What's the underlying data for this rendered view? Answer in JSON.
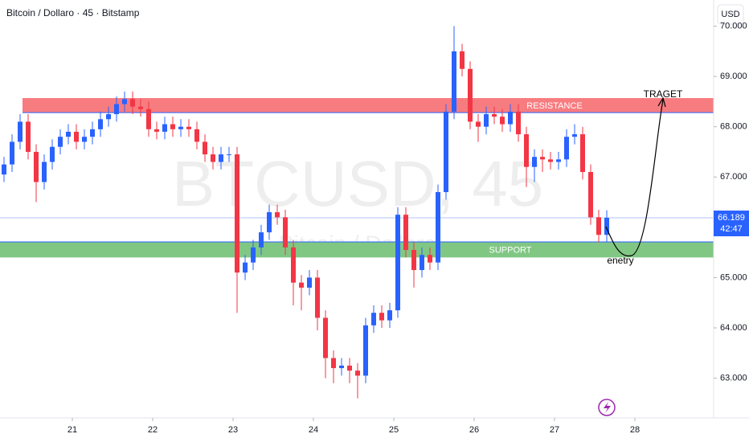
{
  "chart_data": {
    "type": "candlestick",
    "title": "Bitcoin / Dollaro · 45 · Bitstamp",
    "watermark": "BTCUSD, 45",
    "watermark_subtitle": "Bitcoin / Dollaro",
    "currency": "USD",
    "x": [
      20.15,
      20.25,
      20.35,
      20.45,
      20.55,
      20.65,
      20.75,
      20.85,
      20.95,
      21.05,
      21.15,
      21.25,
      21.35,
      21.45,
      21.55,
      21.65,
      21.75,
      21.85,
      21.95,
      22.05,
      22.15,
      22.25,
      22.35,
      22.45,
      22.55,
      22.65,
      22.75,
      22.85,
      22.95,
      23.05,
      23.15,
      23.25,
      23.35,
      23.45,
      23.55,
      23.65,
      23.75,
      23.85,
      23.95,
      24.05,
      24.15,
      24.25,
      24.35,
      24.45,
      24.55,
      24.65,
      24.75,
      24.85,
      24.95,
      25.05,
      25.15,
      25.25,
      25.35,
      25.45,
      25.55,
      25.65,
      25.75,
      25.85,
      25.95,
      26.05,
      26.15,
      26.25,
      26.35,
      26.45,
      26.55,
      26.65,
      26.75,
      26.85,
      26.95,
      27.05,
      27.15,
      27.25,
      27.35,
      27.45,
      27.55,
      27.65
    ],
    "open": [
      67050,
      67250,
      67700,
      68100,
      67500,
      66900,
      67300,
      67600,
      67800,
      67900,
      67700,
      67800,
      67950,
      68150,
      68250,
      68450,
      68550,
      68400,
      68350,
      67950,
      67900,
      68050,
      67950,
      68000,
      67950,
      67700,
      67450,
      67300,
      67450,
      67450,
      65100,
      65300,
      65600,
      65900,
      66300,
      66200,
      65600,
      64900,
      64800,
      65000,
      64200,
      63400,
      63200,
      63250,
      63150,
      63050,
      64050,
      64300,
      64150,
      64350,
      66250,
      65550,
      65150,
      65450,
      65300,
      66700,
      68300,
      69500,
      69150,
      68100,
      68000,
      68250,
      68200,
      68050,
      68300,
      67850,
      67200,
      67400,
      67350,
      67300,
      67350,
      67800,
      67850,
      67100,
      66200,
      65850
    ],
    "high": [
      67400,
      67850,
      68250,
      68250,
      67650,
      67450,
      67750,
      67950,
      68050,
      68050,
      67950,
      68100,
      68300,
      68400,
      68600,
      68700,
      68700,
      68550,
      68500,
      68100,
      68200,
      68200,
      68150,
      68150,
      68100,
      67850,
      67600,
      67600,
      67600,
      67600,
      65450,
      65750,
      66050,
      66450,
      66450,
      66350,
      65750,
      65050,
      65150,
      65150,
      64350,
      63550,
      63400,
      63400,
      63300,
      64200,
      64450,
      64450,
      64500,
      66400,
      66400,
      65700,
      65600,
      65600,
      66850,
      68450,
      70000,
      69650,
      69300,
      68250,
      68400,
      68400,
      68350,
      68450,
      68450,
      68000,
      67550,
      67550,
      67500,
      67500,
      67950,
      68050,
      68000,
      67250,
      66350,
      66339
    ],
    "low": [
      66900,
      67100,
      67550,
      67350,
      66500,
      66750,
      67150,
      67450,
      67650,
      67550,
      67550,
      67650,
      67800,
      68000,
      68100,
      68300,
      68250,
      68200,
      67800,
      67750,
      67750,
      67800,
      67800,
      67800,
      67550,
      67300,
      67150,
      67150,
      67300,
      64300,
      64950,
      65150,
      65450,
      65750,
      66050,
      65450,
      64450,
      64350,
      64650,
      63950,
      63000,
      62900,
      63050,
      62900,
      62600,
      62900,
      63900,
      64000,
      64000,
      64200,
      65400,
      64800,
      65000,
      65150,
      65150,
      66550,
      68150,
      69000,
      67950,
      67700,
      67850,
      68050,
      67900,
      67900,
      67700,
      66800,
      66900,
      67100,
      67150,
      67150,
      67200,
      67650,
      66950,
      66050,
      65700,
      65700
    ],
    "close": [
      67250,
      67700,
      68100,
      67500,
      66900,
      67300,
      67600,
      67800,
      67900,
      67700,
      67800,
      67950,
      68150,
      68250,
      68450,
      68550,
      68400,
      68350,
      67950,
      67900,
      68050,
      67950,
      68000,
      67950,
      67700,
      67450,
      67300,
      67450,
      67450,
      65100,
      65300,
      65600,
      65900,
      66300,
      66200,
      65600,
      64900,
      64800,
      65000,
      64200,
      63400,
      63200,
      63250,
      63150,
      63050,
      64050,
      64300,
      64150,
      64350,
      66250,
      65550,
      65150,
      65450,
      65300,
      66700,
      68300,
      69500,
      69150,
      68100,
      68000,
      68250,
      68200,
      68050,
      68300,
      67850,
      67200,
      67400,
      67350,
      67300,
      67350,
      67800,
      67850,
      67100,
      66200,
      65850,
      66189
    ],
    "up_color": "#2962ff",
    "down_color": "#f23645",
    "xlim": [
      20.1,
      28.98
    ],
    "xticks": [
      21,
      22,
      23,
      24,
      25,
      26,
      27,
      28
    ],
    "ylim": [
      62210,
      70520
    ],
    "yticks": [
      {
        "value": 63000,
        "label": "63.000"
      },
      {
        "value": 64000,
        "label": "64.000"
      },
      {
        "value": 65000,
        "label": "65.000"
      },
      {
        "value": 67000,
        "label": "67.000"
      },
      {
        "value": 68000,
        "label": "68.000"
      },
      {
        "value": 69000,
        "label": "69.000"
      },
      {
        "value": 70000,
        "label": "70.000"
      }
    ],
    "last_price": {
      "value": 66189,
      "label": "66.189"
    },
    "countdown": "42:47",
    "zones": [
      {
        "label": "RESISTANCE",
        "range": [
          68280,
          68570
        ],
        "color": "#f77c80"
      },
      {
        "label": "SUPPORT",
        "range": [
          65400,
          65710
        ],
        "color": "#81c784"
      }
    ],
    "annotations": [
      "TRAGET",
      "enetry"
    ]
  }
}
